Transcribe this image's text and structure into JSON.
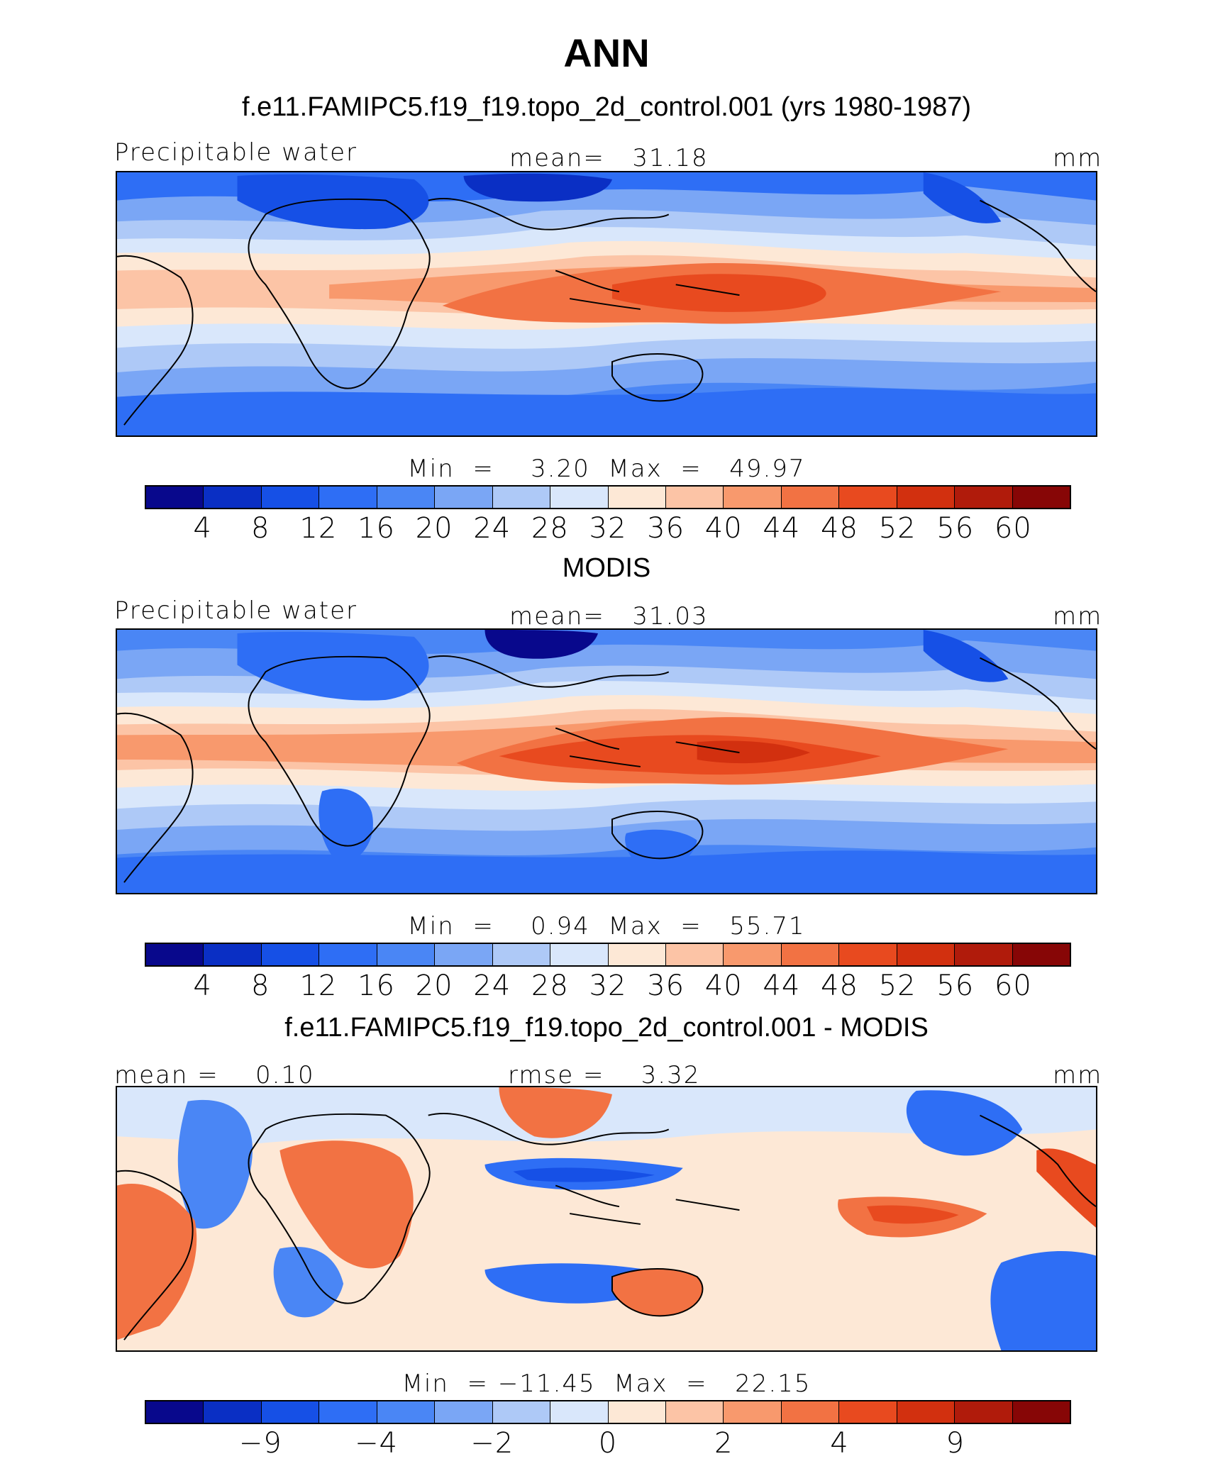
{
  "figure": {
    "title": "ANN"
  },
  "colormap": [
    "#08088c",
    "#0a2fc4",
    "#1650e6",
    "#2e6ef5",
    "#4a86f5",
    "#7aa6f5",
    "#aec9f7",
    "#d9e7fb",
    "#fde8d6",
    "#fcc4a6",
    "#f8996d",
    "#f27243",
    "#e84a1f",
    "#d2300f",
    "#b01b0b",
    "#870606"
  ],
  "panels": [
    {
      "title": "f.e11.FAMIPC5.f19_f19.topo_2d_control.001 (yrs 1980-1987)",
      "left_label": "Precipitable water",
      "center_label": "mean=   31.18",
      "right_label": "mm",
      "stats": "Min  =    3.20  Max  =   49.97",
      "tick_labels": [
        "4",
        "8",
        "12",
        "16",
        "20",
        "24",
        "28",
        "32",
        "36",
        "40",
        "44",
        "48",
        "52",
        "56",
        "60"
      ]
    },
    {
      "title": "MODIS",
      "left_label": "Precipitable water",
      "center_label": "mean=   31.03",
      "right_label": "mm",
      "stats": "Min  =    0.94  Max  =   55.71",
      "tick_labels": [
        "4",
        "8",
        "12",
        "16",
        "20",
        "24",
        "28",
        "32",
        "36",
        "40",
        "44",
        "48",
        "52",
        "56",
        "60"
      ]
    },
    {
      "title": "f.e11.FAMIPC5.f19_f19.topo_2d_control.001 - MODIS",
      "left_label": "mean =    0.10",
      "center_label": "rmse =    3.32",
      "right_label": "mm",
      "stats": "Min  = −11.45  Max  =   22.15",
      "tick_labels": [
        "−9",
        "−4",
        "−2",
        "0",
        "2",
        "4",
        "9"
      ]
    }
  ]
}
